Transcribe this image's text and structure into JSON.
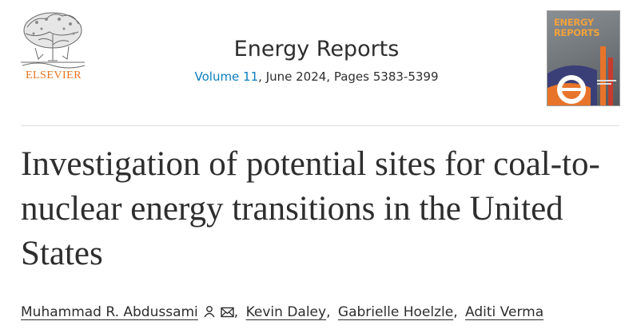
{
  "header": {
    "publisher": "ELSEVIER",
    "journal_title": "Energy Reports",
    "volume_link": "Volume 11",
    "volume_rest": ", June 2024, Pages 5383-5399"
  },
  "cover": {
    "title": "ENERGY\nREPORTS"
  },
  "article": {
    "title": "Investigation of potential sites for coal-to-nuclear energy transitions in the United States"
  },
  "authors": [
    {
      "name": "Muhammad R. Abdussami"
    },
    {
      "name": "Kevin Daley"
    },
    {
      "name": "Gabrielle Hoelzle"
    },
    {
      "name": "Aditi Verma"
    }
  ],
  "authors_separator": ",",
  "icons": {
    "author_profile": "person-icon",
    "author_email": "envelope-icon",
    "publisher_logo": "elsevier-tree-logo"
  },
  "colors": {
    "publisher_orange": "#e9711c",
    "link_blue": "#0c7dbb",
    "text": "#2e2e2e",
    "cover_accent": "#f2a23a"
  }
}
